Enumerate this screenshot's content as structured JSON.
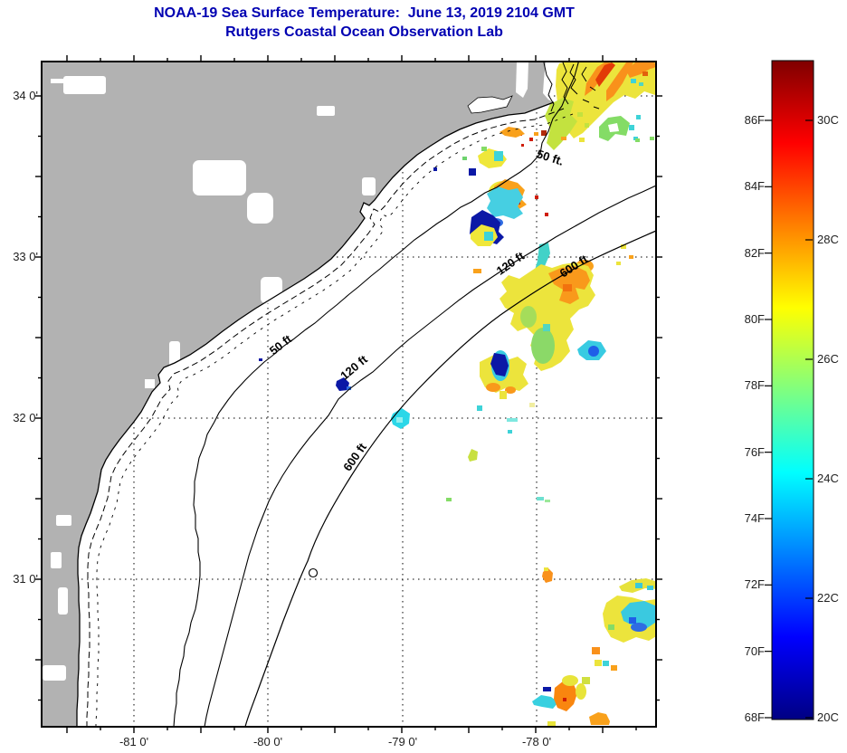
{
  "title": {
    "line1": "NOAA-19 Sea Surface Temperature:  June 13, 2019 2104 GMT",
    "line2": "Rutgers Coastal Ocean Observation Lab"
  },
  "map": {
    "x_axis": {
      "tick_labels": [
        "-81 0'",
        "-80 0'",
        "-79 0'",
        "-78 0'"
      ]
    },
    "y_axis": {
      "tick_labels": [
        "34 0'",
        "33 0'",
        "32 0'",
        "31 0'"
      ]
    },
    "contour_labels": [
      "50 ft.",
      "120 ft",
      "600 ft",
      "50 ft",
      "120 ft",
      "600 ft"
    ]
  },
  "colorbar": {
    "fahrenheit_labels": [
      "86F",
      "84F",
      "82F",
      "80F",
      "78F",
      "76F",
      "74F",
      "72F",
      "70F",
      "68F"
    ],
    "celsius_labels": [
      "30C",
      "28C",
      "26C",
      "24C",
      "22C",
      "20C"
    ],
    "gradient_stops_top_to_bottom": [
      "#7f0000",
      "#ff0000",
      "#ffff00",
      "#00ffff",
      "#0000ff",
      "#000083"
    ]
  },
  "colors": {
    "land_gray": "#b2b2b2",
    "title_blue": "#0000b2",
    "axis_text": "#1f1f1f",
    "warm_orange": "#f9911b",
    "sst_yellow": "#ece43c",
    "sst_cyan": "#3ed3d8",
    "sst_navy": "#0b18a6"
  }
}
